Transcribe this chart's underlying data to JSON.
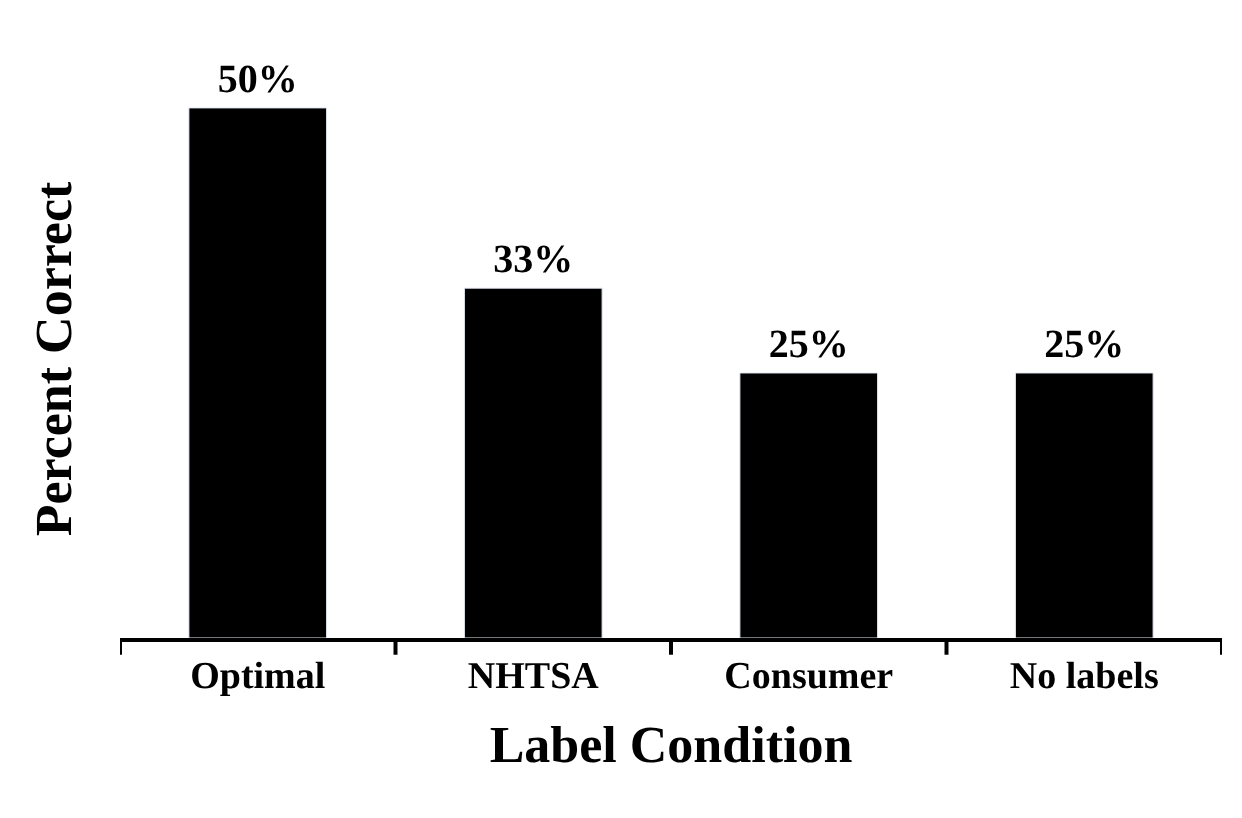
{
  "chart_data": {
    "type": "bar",
    "xlabel": "Label Condition",
    "ylabel": "Percent Correct",
    "categories": [
      "Optimal",
      "NHTSA",
      "Consumer",
      "No labels"
    ],
    "values": [
      50,
      33,
      25,
      25
    ],
    "value_labels": [
      "50%",
      "33%",
      "25%",
      "25%"
    ],
    "color": "#000000",
    "tick_labels": "x"
  }
}
